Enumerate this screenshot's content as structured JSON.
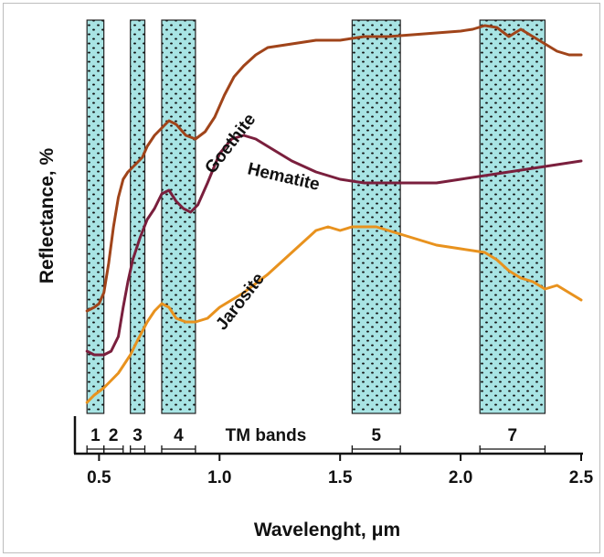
{
  "chart_data": {
    "type": "line",
    "xlabel": "Wavelenght, μm",
    "ylabel": "Reflectance, %",
    "xlim": [
      0.4,
      2.5
    ],
    "x_ticks": [
      "0.5",
      "1.0",
      "1.5",
      "2.0",
      "2.5"
    ],
    "bands_label": "TM bands",
    "bands": [
      {
        "name": "1",
        "range": [
          0.45,
          0.52
        ]
      },
      {
        "name": "2",
        "range": [
          0.52,
          0.6
        ]
      },
      {
        "name": "3",
        "range": [
          0.63,
          0.69
        ]
      },
      {
        "name": "4",
        "range": [
          0.76,
          0.9
        ]
      },
      {
        "name": "5",
        "range": [
          1.55,
          1.75
        ]
      },
      {
        "name": "7",
        "range": [
          2.08,
          2.35
        ]
      }
    ],
    "series": [
      {
        "name": "Goethite",
        "color": "#a0441a",
        "x": [
          0.45,
          0.48,
          0.5,
          0.52,
          0.54,
          0.56,
          0.58,
          0.6,
          0.62,
          0.65,
          0.68,
          0.7,
          0.73,
          0.76,
          0.79,
          0.82,
          0.86,
          0.9,
          0.94,
          0.98,
          1.02,
          1.06,
          1.1,
          1.15,
          1.2,
          1.3,
          1.4,
          1.5,
          1.6,
          1.7,
          1.8,
          1.9,
          2.0,
          2.05,
          2.1,
          2.15,
          2.2,
          2.25,
          2.3,
          2.35,
          2.4,
          2.45,
          2.5
        ],
        "y": [
          0.25,
          0.26,
          0.27,
          0.3,
          0.38,
          0.48,
          0.56,
          0.61,
          0.63,
          0.65,
          0.67,
          0.7,
          0.73,
          0.75,
          0.77,
          0.76,
          0.73,
          0.72,
          0.74,
          0.78,
          0.84,
          0.89,
          0.92,
          0.95,
          0.97,
          0.98,
          0.99,
          0.99,
          1.0,
          1.0,
          1.005,
          1.01,
          1.015,
          1.02,
          1.03,
          1.025,
          1.0,
          1.02,
          1.0,
          0.98,
          0.96,
          0.95,
          0.95
        ]
      },
      {
        "name": "Hematite",
        "color": "#7a1f3d",
        "x": [
          0.45,
          0.48,
          0.5,
          0.52,
          0.55,
          0.58,
          0.6,
          0.62,
          0.64,
          0.67,
          0.7,
          0.73,
          0.76,
          0.79,
          0.82,
          0.85,
          0.88,
          0.91,
          0.95,
          1.0,
          1.05,
          1.1,
          1.15,
          1.2,
          1.3,
          1.4,
          1.5,
          1.6,
          1.7,
          1.8,
          1.9,
          2.0,
          2.1,
          2.2,
          2.3,
          2.4,
          2.5
        ],
        "y": [
          0.14,
          0.13,
          0.13,
          0.13,
          0.14,
          0.18,
          0.26,
          0.33,
          0.39,
          0.45,
          0.5,
          0.53,
          0.57,
          0.58,
          0.55,
          0.53,
          0.52,
          0.54,
          0.6,
          0.68,
          0.72,
          0.73,
          0.72,
          0.7,
          0.66,
          0.63,
          0.61,
          0.6,
          0.6,
          0.6,
          0.6,
          0.61,
          0.62,
          0.63,
          0.64,
          0.65,
          0.66
        ]
      },
      {
        "name": "Jarosite",
        "color": "#e8921e",
        "x": [
          0.45,
          0.48,
          0.5,
          0.52,
          0.55,
          0.58,
          0.6,
          0.63,
          0.66,
          0.7,
          0.73,
          0.76,
          0.79,
          0.82,
          0.86,
          0.9,
          0.95,
          1.0,
          1.05,
          1.1,
          1.2,
          1.3,
          1.4,
          1.45,
          1.5,
          1.55,
          1.6,
          1.65,
          1.7,
          1.75,
          1.8,
          1.9,
          2.0,
          2.1,
          2.15,
          2.2,
          2.25,
          2.3,
          2.35,
          2.4,
          2.45,
          2.5
        ],
        "y": [
          0.0,
          0.02,
          0.03,
          0.04,
          0.06,
          0.08,
          0.1,
          0.13,
          0.17,
          0.22,
          0.25,
          0.27,
          0.26,
          0.23,
          0.22,
          0.22,
          0.23,
          0.26,
          0.28,
          0.3,
          0.35,
          0.41,
          0.47,
          0.48,
          0.47,
          0.48,
          0.48,
          0.48,
          0.47,
          0.46,
          0.45,
          0.43,
          0.42,
          0.41,
          0.39,
          0.36,
          0.34,
          0.33,
          0.31,
          0.32,
          0.3,
          0.28
        ]
      }
    ]
  }
}
